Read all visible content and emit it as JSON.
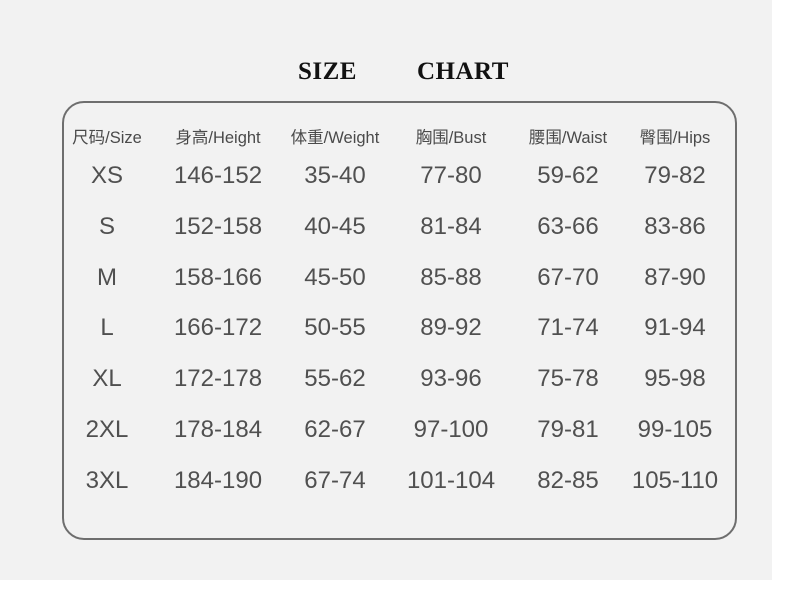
{
  "title": {
    "word1": "SIZE",
    "word2": "CHART"
  },
  "table": {
    "headers": [
      "尺码/Size",
      "身高/Height",
      "体重/Weight",
      "胸围/Bust",
      "腰围/Waist",
      "臀围/Hips"
    ],
    "rows": [
      [
        "XS",
        "146-152",
        "35-40",
        "77-80",
        "59-62",
        "79-82"
      ],
      [
        "S",
        "152-158",
        "40-45",
        "81-84",
        "63-66",
        "83-86"
      ],
      [
        "M",
        "158-166",
        "45-50",
        "85-88",
        "67-70",
        "87-90"
      ],
      [
        "L",
        "166-172",
        "50-55",
        "89-92",
        "71-74",
        "91-94"
      ],
      [
        "XL",
        "172-178",
        "55-62",
        "93-96",
        "75-78",
        "95-98"
      ],
      [
        "2XL",
        "178-184",
        "62-67",
        "97-100",
        "79-81",
        "99-105"
      ],
      [
        "3XL",
        "184-190",
        "67-74",
        "101-104",
        "82-85",
        "105-110"
      ]
    ]
  }
}
